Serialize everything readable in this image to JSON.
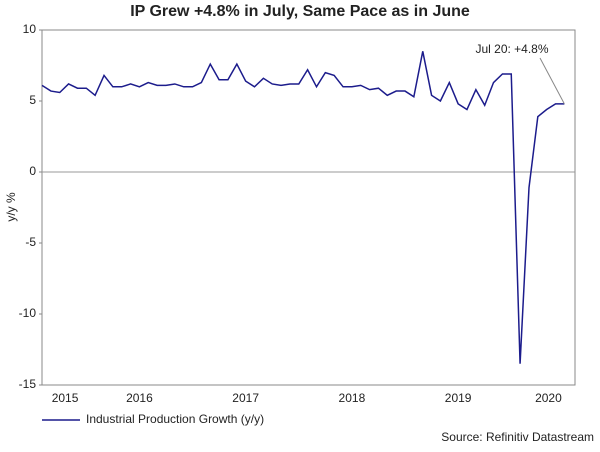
{
  "chart_data": {
    "type": "line",
    "title": "IP Grew +4.8% in July, Same Pace as in June",
    "y_label": "y/y %",
    "annotation": "Jul 20: +4.8%",
    "source": "Source: Refinitiv Datastream",
    "x": [
      2015.583,
      2015.667,
      2015.75,
      2015.833,
      2015.917,
      2016,
      2016.083,
      2016.167,
      2016.25,
      2016.333,
      2016.417,
      2016.5,
      2016.583,
      2016.667,
      2016.75,
      2016.833,
      2016.917,
      2017,
      2017.083,
      2017.167,
      2017.25,
      2017.333,
      2017.417,
      2017.5,
      2017.583,
      2017.667,
      2017.75,
      2017.833,
      2017.917,
      2018,
      2018.083,
      2018.167,
      2018.25,
      2018.333,
      2018.417,
      2018.5,
      2018.583,
      2018.667,
      2018.75,
      2018.833,
      2018.917,
      2019,
      2019.083,
      2019.167,
      2019.25,
      2019.333,
      2019.417,
      2019.5,
      2019.583,
      2019.667,
      2019.75,
      2019.833,
      2019.917,
      2020,
      2020.083,
      2020.167,
      2020.25,
      2020.333,
      2020.417,
      2020.5
    ],
    "series": [
      {
        "name": "Industrial Production Growth (y/y)",
        "color": "#1c1c8c",
        "values": [
          6.1,
          5.7,
          5.6,
          6.2,
          5.9,
          5.9,
          5.4,
          6.8,
          6.0,
          6.0,
          6.2,
          6.0,
          6.3,
          6.1,
          6.1,
          6.2,
          6.0,
          6.0,
          6.3,
          7.6,
          6.5,
          6.5,
          7.6,
          6.4,
          6.0,
          6.6,
          6.2,
          6.1,
          6.2,
          6.2,
          7.2,
          6.0,
          7.0,
          6.8,
          6.0,
          6.0,
          6.1,
          5.8,
          5.9,
          5.4,
          5.7,
          5.7,
          5.3,
          8.5,
          5.4,
          5.0,
          6.3,
          4.8,
          4.4,
          5.8,
          4.7,
          6.3,
          6.9,
          6.9,
          -13.5,
          -1.1,
          3.9,
          4.4,
          4.8,
          4.8
        ]
      }
    ],
    "xlim": [
      2015.583,
      2020.6
    ],
    "xticks": [
      {
        "value": 2015.8,
        "label": "2015"
      },
      {
        "value": 2016.5,
        "label": "2016"
      },
      {
        "value": 2017.5,
        "label": "2017"
      },
      {
        "value": 2018.5,
        "label": "2018"
      },
      {
        "value": 2019.5,
        "label": "2019"
      },
      {
        "value": 2020.35,
        "label": "2020"
      }
    ],
    "ylim": [
      -15,
      10
    ],
    "yticks": [
      -15,
      -10,
      -5,
      0,
      5,
      10
    ],
    "zero_line": true
  }
}
